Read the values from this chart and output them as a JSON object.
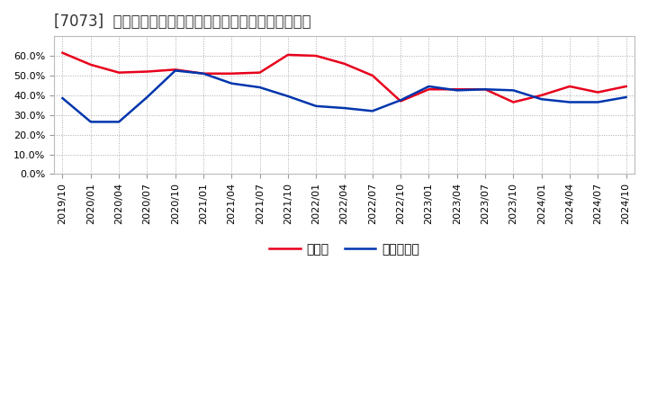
{
  "title": "[7073]  現預金、有利子負債の総資産に対する比率の推移",
  "x_labels": [
    "2019/10",
    "2020/01",
    "2020/04",
    "2020/07",
    "2020/10",
    "2021/01",
    "2021/04",
    "2021/07",
    "2021/10",
    "2022/01",
    "2022/04",
    "2022/07",
    "2022/10",
    "2023/01",
    "2023/04",
    "2023/07",
    "2023/10",
    "2024/01",
    "2024/04",
    "2024/07",
    "2024/10"
  ],
  "cash_ratio": [
    0.615,
    0.555,
    0.515,
    0.52,
    0.53,
    0.51,
    0.51,
    0.515,
    0.605,
    0.6,
    0.56,
    0.5,
    0.37,
    0.43,
    0.43,
    0.43,
    0.365,
    0.4,
    0.445,
    0.415,
    0.445
  ],
  "debt_ratio": [
    0.385,
    0.265,
    0.265,
    0.39,
    0.525,
    0.51,
    0.46,
    0.44,
    0.395,
    0.345,
    0.335,
    0.32,
    0.375,
    0.445,
    0.425,
    0.43,
    0.425,
    0.38,
    0.365,
    0.365,
    0.39
  ],
  "cash_color": "#e8001c",
  "debt_color": "#0035ad",
  "bg_color": "#ffffff",
  "plot_bg_color": "#ffffff",
  "grid_color": "#aaaaaa",
  "ylim": [
    0.0,
    0.7
  ],
  "yticks": [
    0.0,
    0.1,
    0.2,
    0.3,
    0.4,
    0.5,
    0.6
  ],
  "legend_cash": "現預金",
  "legend_debt": "有利子負債",
  "title_fontsize": 12,
  "tick_fontsize": 8,
  "legend_fontsize": 10
}
